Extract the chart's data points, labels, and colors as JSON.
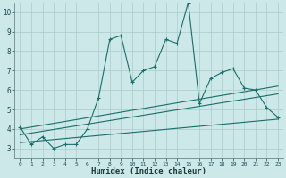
{
  "xlabel": "Humidex (Indice chaleur)",
  "xlim": [
    -0.5,
    23.5
  ],
  "ylim": [
    2.5,
    10.5
  ],
  "yticks": [
    3,
    4,
    5,
    6,
    7,
    8,
    9,
    10
  ],
  "xticks": [
    0,
    1,
    2,
    3,
    4,
    5,
    6,
    7,
    8,
    9,
    10,
    11,
    12,
    13,
    14,
    15,
    16,
    17,
    18,
    19,
    20,
    21,
    22,
    23
  ],
  "bg_color": "#cce8e8",
  "grid_color": "#aacccc",
  "line_color": "#1a6e6a",
  "jagged_x": [
    0,
    1,
    2,
    3,
    4,
    5,
    6,
    7,
    8,
    9,
    10,
    11,
    12,
    13,
    14,
    15,
    16,
    17,
    18,
    19,
    20,
    21,
    22,
    23
  ],
  "jagged_y": [
    4.1,
    3.2,
    3.6,
    3.0,
    3.2,
    3.2,
    4.0,
    5.6,
    8.6,
    8.8,
    6.4,
    7.0,
    7.2,
    8.6,
    8.4,
    10.5,
    5.3,
    6.6,
    6.9,
    7.1,
    6.1,
    6.0,
    5.1,
    4.6
  ],
  "line1_x": [
    0,
    23
  ],
  "line1_y": [
    4.0,
    6.2
  ],
  "line2_x": [
    0,
    23
  ],
  "line2_y": [
    3.7,
    5.8
  ],
  "line3_x": [
    0,
    23
  ],
  "line3_y": [
    3.3,
    4.5
  ]
}
